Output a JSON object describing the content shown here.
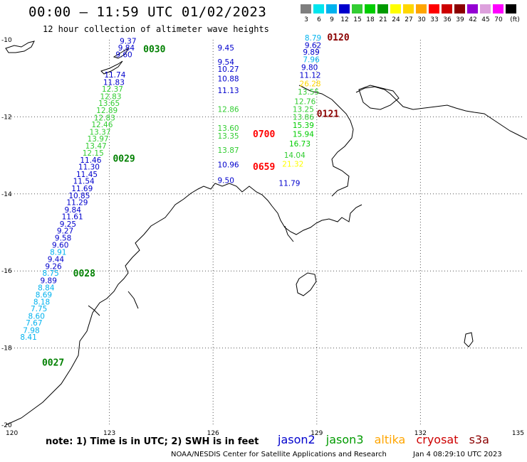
{
  "header": {
    "title": "00:00 – 11:59 UTC 01/02/2023",
    "subtitle": "12 hour collection of altimeter wave heights"
  },
  "color_scale": {
    "unit": "(ft)",
    "swatches": [
      {
        "label": "3",
        "color": "#7f7f7f"
      },
      {
        "label": "6",
        "color": "#00e5ee"
      },
      {
        "label": "9",
        "color": "#00b2ee"
      },
      {
        "label": "12",
        "color": "#0000cd"
      },
      {
        "label": "15",
        "color": "#32cd32"
      },
      {
        "label": "18",
        "color": "#00cd00"
      },
      {
        "label": "21",
        "color": "#009a00"
      },
      {
        "label": "24",
        "color": "#ffff00"
      },
      {
        "label": "27",
        "color": "#ffd700"
      },
      {
        "label": "30",
        "color": "#ffa500"
      },
      {
        "label": "33",
        "color": "#ff0000"
      },
      {
        "label": "36",
        "color": "#cd0000"
      },
      {
        "label": "39",
        "color": "#8b0000"
      },
      {
        "label": "42",
        "color": "#9400d3"
      },
      {
        "label": "45",
        "color": "#dda0dd"
      },
      {
        "label": "70",
        "color": "#ff00ff"
      },
      {
        "label": "",
        "color": "#000000"
      }
    ]
  },
  "axes": {
    "x_ticks": [
      "120",
      "123",
      "126",
      "129",
      "132",
      "135"
    ],
    "y_ticks": [
      "-10",
      "-12",
      "-14",
      "-16",
      "-18",
      "-20"
    ]
  },
  "passes": [
    {
      "time": "0030",
      "color": "#008000",
      "lon": 123.98,
      "lat": -10.32
    },
    {
      "time": "0029",
      "color": "#008000",
      "lon": 123.1,
      "lat": -13.16
    },
    {
      "time": "0028",
      "color": "#008000",
      "lon": 121.95,
      "lat": -16.14
    },
    {
      "time": "0027",
      "color": "#008000",
      "lon": 121.05,
      "lat": -18.46
    },
    {
      "time": "0700",
      "color": "#ff0000",
      "lon": 127.15,
      "lat": -12.53
    },
    {
      "time": "0659",
      "color": "#ff0000",
      "lon": 127.15,
      "lat": -13.38
    },
    {
      "time": "0120",
      "color": "#8b0000",
      "lon": 129.3,
      "lat": -10.02
    },
    {
      "time": "0121",
      "color": "#8b0000",
      "lon": 129.0,
      "lat": -12.0
    }
  ],
  "observations": [
    {
      "v": "9.37",
      "c": "#0000cd",
      "lon": 123.3,
      "lat": -10.1
    },
    {
      "v": "9.84",
      "c": "#0000cd",
      "lon": 123.25,
      "lat": -10.28
    },
    {
      "v": "9.60",
      "c": "#0000cd",
      "lon": 123.18,
      "lat": -10.45
    },
    {
      "v": "11.74",
      "c": "#0000cd",
      "lon": 122.85,
      "lat": -10.98
    },
    {
      "v": "11.83",
      "c": "#0000cd",
      "lon": 122.82,
      "lat": -11.17
    },
    {
      "v": "12.37",
      "c": "#32cd32",
      "lon": 122.78,
      "lat": -11.35
    },
    {
      "v": "12.83",
      "c": "#32cd32",
      "lon": 122.73,
      "lat": -11.54
    },
    {
      "v": "13.65",
      "c": "#32cd32",
      "lon": 122.68,
      "lat": -11.72
    },
    {
      "v": "12.89",
      "c": "#32cd32",
      "lon": 122.62,
      "lat": -11.9
    },
    {
      "v": "12.83",
      "c": "#32cd32",
      "lon": 122.55,
      "lat": -12.09
    },
    {
      "v": "12.46",
      "c": "#32cd32",
      "lon": 122.48,
      "lat": -12.27
    },
    {
      "v": "13.37",
      "c": "#32cd32",
      "lon": 122.42,
      "lat": -12.46
    },
    {
      "v": "13.97",
      "c": "#32cd32",
      "lon": 122.36,
      "lat": -12.64
    },
    {
      "v": "13.47",
      "c": "#32cd32",
      "lon": 122.3,
      "lat": -12.82
    },
    {
      "v": "12.15",
      "c": "#32cd32",
      "lon": 122.22,
      "lat": -13.01
    },
    {
      "v": "11.46",
      "c": "#0000cd",
      "lon": 122.15,
      "lat": -13.19
    },
    {
      "v": "11.30",
      "c": "#0000cd",
      "lon": 122.1,
      "lat": -13.37
    },
    {
      "v": "11.45",
      "c": "#0000cd",
      "lon": 122.04,
      "lat": -13.56
    },
    {
      "v": "11.54",
      "c": "#0000cd",
      "lon": 121.95,
      "lat": -13.74
    },
    {
      "v": "11.69",
      "c": "#0000cd",
      "lon": 121.9,
      "lat": -13.93
    },
    {
      "v": "10.85",
      "c": "#0000cd",
      "lon": 121.82,
      "lat": -14.11
    },
    {
      "v": "11.29",
      "c": "#0000cd",
      "lon": 121.76,
      "lat": -14.29
    },
    {
      "v": "9.84",
      "c": "#0000cd",
      "lon": 121.7,
      "lat": -14.48
    },
    {
      "v": "11.61",
      "c": "#0000cd",
      "lon": 121.62,
      "lat": -14.66
    },
    {
      "v": "9.25",
      "c": "#0000cd",
      "lon": 121.56,
      "lat": -14.85
    },
    {
      "v": "9.27",
      "c": "#0000cd",
      "lon": 121.48,
      "lat": -15.03
    },
    {
      "v": "9.58",
      "c": "#0000cd",
      "lon": 121.42,
      "lat": -15.21
    },
    {
      "v": "9.60",
      "c": "#0000cd",
      "lon": 121.34,
      "lat": -15.4
    },
    {
      "v": "8.91",
      "c": "#00b2ee",
      "lon": 121.28,
      "lat": -15.58
    },
    {
      "v": "9.44",
      "c": "#0000cd",
      "lon": 121.21,
      "lat": -15.77
    },
    {
      "v": "9.26",
      "c": "#0000cd",
      "lon": 121.14,
      "lat": -15.95
    },
    {
      "v": "8.75",
      "c": "#00b2ee",
      "lon": 121.06,
      "lat": -16.13
    },
    {
      "v": "9.89",
      "c": "#0000cd",
      "lon": 121.0,
      "lat": -16.32
    },
    {
      "v": "8.84",
      "c": "#00b2ee",
      "lon": 120.93,
      "lat": -16.5
    },
    {
      "v": "8.69",
      "c": "#00b2ee",
      "lon": 120.86,
      "lat": -16.69
    },
    {
      "v": "8.18",
      "c": "#00b2ee",
      "lon": 120.8,
      "lat": -16.87
    },
    {
      "v": "7.75",
      "c": "#00b2ee",
      "lon": 120.72,
      "lat": -17.05
    },
    {
      "v": "8.60",
      "c": "#00b2ee",
      "lon": 120.65,
      "lat": -17.24
    },
    {
      "v": "7.67",
      "c": "#00b2ee",
      "lon": 120.58,
      "lat": -17.42
    },
    {
      "v": "7.98",
      "c": "#00b2ee",
      "lon": 120.5,
      "lat": -17.61
    },
    {
      "v": "8.41",
      "c": "#00b2ee",
      "lon": 120.42,
      "lat": -17.79
    },
    {
      "v": "9.45",
      "c": "#0000cd",
      "lon": 126.13,
      "lat": -10.28
    },
    {
      "v": "9.54",
      "c": "#0000cd",
      "lon": 126.13,
      "lat": -10.65
    },
    {
      "v": "10.27",
      "c": "#0000cd",
      "lon": 126.13,
      "lat": -10.83
    },
    {
      "v": "10.88",
      "c": "#0000cd",
      "lon": 126.13,
      "lat": -11.08
    },
    {
      "v": "11.13",
      "c": "#0000cd",
      "lon": 126.13,
      "lat": -11.38
    },
    {
      "v": "12.86",
      "c": "#32cd32",
      "lon": 126.13,
      "lat": -11.87
    },
    {
      "v": "13.60",
      "c": "#32cd32",
      "lon": 126.13,
      "lat": -12.36
    },
    {
      "v": "13.35",
      "c": "#32cd32",
      "lon": 126.13,
      "lat": -12.56
    },
    {
      "v": "13.87",
      "c": "#32cd32",
      "lon": 126.13,
      "lat": -12.93
    },
    {
      "v": "10.96",
      "c": "#0000cd",
      "lon": 126.13,
      "lat": -13.31
    },
    {
      "v": "9.50",
      "c": "#0000cd",
      "lon": 126.13,
      "lat": -13.72
    },
    {
      "v": "8.79",
      "c": "#00b2ee",
      "lon": 128.65,
      "lat": -10.02
    },
    {
      "v": "9.62",
      "c": "#0000cd",
      "lon": 128.65,
      "lat": -10.21
    },
    {
      "v": "9.89",
      "c": "#0000cd",
      "lon": 128.6,
      "lat": -10.39
    },
    {
      "v": "7.96",
      "c": "#00b2ee",
      "lon": 128.6,
      "lat": -10.58
    },
    {
      "v": "9.80",
      "c": "#0000cd",
      "lon": 128.55,
      "lat": -10.78
    },
    {
      "v": "11.12",
      "c": "#0000cd",
      "lon": 128.5,
      "lat": -10.99
    },
    {
      "v": "26.28",
      "c": "#ffd700",
      "lon": 128.5,
      "lat": -11.21
    },
    {
      "v": "13.55",
      "c": "#32cd32",
      "lon": 128.45,
      "lat": -11.42
    },
    {
      "v": "12.76",
      "c": "#32cd32",
      "lon": 128.35,
      "lat": -11.67
    },
    {
      "v": "13.25",
      "c": "#32cd32",
      "lon": 128.3,
      "lat": -11.87
    },
    {
      "v": "13.86",
      "c": "#32cd32",
      "lon": 128.3,
      "lat": -12.08
    },
    {
      "v": "15.39",
      "c": "#00cd00",
      "lon": 128.3,
      "lat": -12.29
    },
    {
      "v": "15.94",
      "c": "#00cd00",
      "lon": 128.3,
      "lat": -12.52
    },
    {
      "v": "16.73",
      "c": "#00cd00",
      "lon": 128.2,
      "lat": -12.77
    },
    {
      "v": "14.04",
      "c": "#32cd32",
      "lon": 128.05,
      "lat": -13.06
    },
    {
      "v": "21.32",
      "c": "#ffff00",
      "lon": 128.0,
      "lat": -13.29
    },
    {
      "v": "11.79",
      "c": "#0000cd",
      "lon": 127.9,
      "lat": -13.79
    }
  ],
  "note": "note:  1) Time is in UTC;  2) SWH is in feet",
  "legend": [
    {
      "label": "jason2",
      "color": "#0000cd"
    },
    {
      "label": "jason3",
      "color": "#009a00"
    },
    {
      "label": "altika",
      "color": "#ffa500"
    },
    {
      "label": "cryosat",
      "color": "#cd0000"
    },
    {
      "label": "s3a",
      "color": "#8b0000"
    }
  ],
  "credit": "NOAA/NESDIS Center for Satellite Applications and Research",
  "generated": "Jan  4 08:29:10 UTC 2023"
}
